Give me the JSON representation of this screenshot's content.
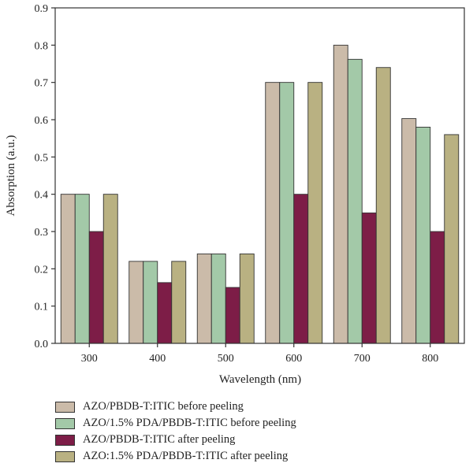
{
  "chart_data": {
    "type": "bar",
    "xlabel": "Wavelength (nm)",
    "ylabel": "Absorption (a.u.)",
    "categories": [
      "300",
      "400",
      "500",
      "600",
      "700",
      "800"
    ],
    "ylim": [
      0,
      0.9
    ],
    "yticks": [
      "0.0",
      "0.1",
      "0.2",
      "0.3",
      "0.4",
      "0.5",
      "0.6",
      "0.7",
      "0.8",
      "0.9"
    ],
    "legend_position": "bottom",
    "grid": false,
    "series": [
      {
        "name": "AZO/PBDB-T:ITIC before peeling",
        "color": "#cbbba9",
        "values": [
          0.4,
          0.22,
          0.24,
          0.7,
          0.8,
          0.603
        ]
      },
      {
        "name": "AZO/1.5% PDA/PBDB-T:ITIC before peeling",
        "color": "#a3c9a8",
        "values": [
          0.4,
          0.22,
          0.24,
          0.7,
          0.762,
          0.58
        ]
      },
      {
        "name": "AZO/PBDB-T:ITIC after peeling",
        "color": "#7d1d47",
        "values": [
          0.3,
          0.163,
          0.15,
          0.4,
          0.35,
          0.3
        ]
      },
      {
        "name": "AZO:1.5% PDA/PBDB-T:ITIC after peeling",
        "color": "#b9b182",
        "values": [
          0.4,
          0.22,
          0.24,
          0.7,
          0.74,
          0.56
        ]
      }
    ]
  }
}
